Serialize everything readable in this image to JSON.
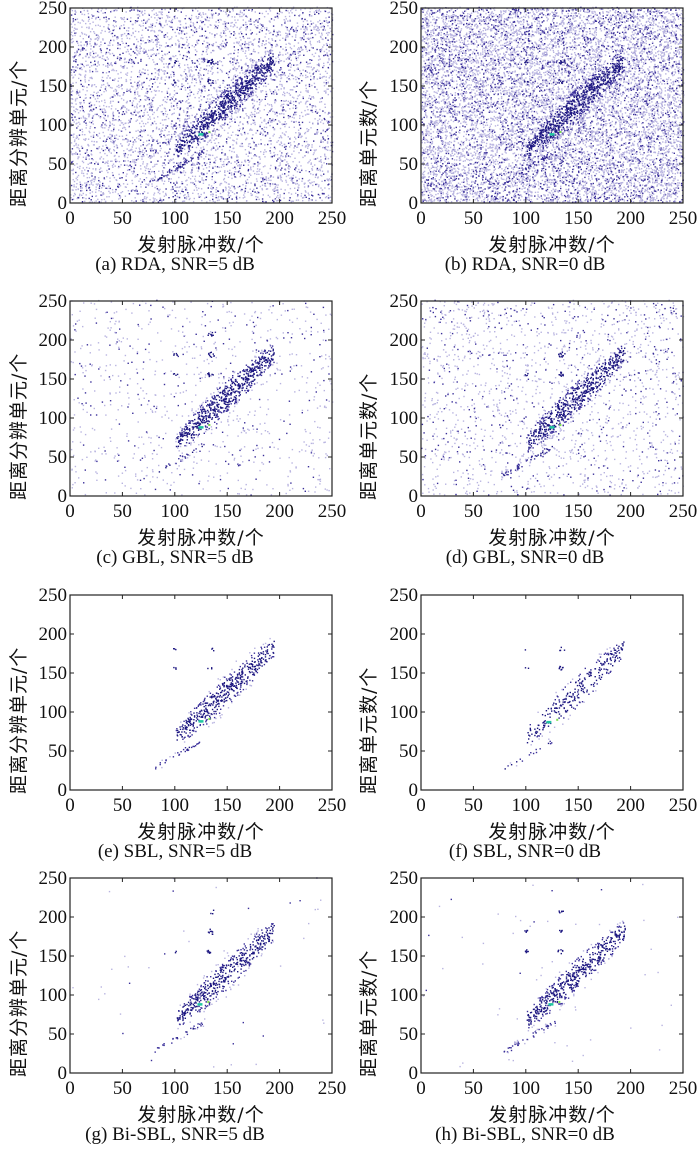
{
  "figure": {
    "colors": {
      "low": "#b8b4e0",
      "mid": "#3a2f9a",
      "high": "#1c1680",
      "peak": "#1fc7a0",
      "peak2": "#7be04a",
      "axis": "#222222"
    }
  },
  "chart_data": [
    {
      "id": "a",
      "type": "heatmap",
      "caption": "(a) RDA, SNR=5 dB",
      "method": "RDA",
      "snr_db": 5,
      "xlabel": "发射脉冲数/个",
      "ylabel": "距离分辨单元/个",
      "xlim": [
        0,
        250
      ],
      "ylim": [
        0,
        250
      ],
      "xticks": [
        0,
        50,
        100,
        150,
        200,
        250
      ],
      "yticks": [
        0,
        50,
        100,
        150,
        200,
        250
      ],
      "noise_level": 0.35,
      "target": {
        "x_range": [
          80,
          195
        ],
        "y_range": [
          20,
          200
        ],
        "peak": [
          125,
          88
        ]
      }
    },
    {
      "id": "b",
      "type": "heatmap",
      "caption": "(b) RDA, SNR=0 dB",
      "method": "RDA",
      "snr_db": 0,
      "xlabel": "发射脉冲数/个",
      "ylabel": "距离单元数/个",
      "xlim": [
        0,
        250
      ],
      "ylim": [
        0,
        250
      ],
      "xticks": [
        0,
        50,
        100,
        150,
        200,
        250
      ],
      "yticks": [
        0,
        50,
        100,
        150,
        200,
        250
      ],
      "noise_level": 0.75,
      "target": {
        "x_range": [
          80,
          195
        ],
        "y_range": [
          20,
          200
        ],
        "peak": [
          125,
          88
        ]
      }
    },
    {
      "id": "c",
      "type": "heatmap",
      "caption": "(c) GBL, SNR=5 dB",
      "method": "GBL",
      "snr_db": 5,
      "xlabel": "发射脉冲数/个",
      "ylabel": "距离分辨单元/个",
      "xlim": [
        0,
        250
      ],
      "ylim": [
        0,
        250
      ],
      "xticks": [
        0,
        50,
        100,
        150,
        200,
        250
      ],
      "yticks": [
        0,
        50,
        100,
        150,
        200,
        250
      ],
      "noise_level": 0.06,
      "target": {
        "x_range": [
          80,
          195
        ],
        "y_range": [
          20,
          230
        ],
        "peak": [
          125,
          88
        ]
      }
    },
    {
      "id": "d",
      "type": "heatmap",
      "caption": "(d) GBL, SNR=0 dB",
      "method": "GBL",
      "snr_db": 0,
      "xlabel": "发射脉冲数/个",
      "ylabel": "距离单元数/个",
      "xlim": [
        0,
        250
      ],
      "ylim": [
        0,
        250
      ],
      "xticks": [
        0,
        50,
        100,
        150,
        200,
        250
      ],
      "yticks": [
        0,
        50,
        100,
        150,
        200,
        250
      ],
      "noise_level": 0.12,
      "target": {
        "x_range": [
          80,
          195
        ],
        "y_range": [
          20,
          200
        ],
        "peak": [
          125,
          88
        ]
      }
    },
    {
      "id": "e",
      "type": "heatmap",
      "caption": "(e) SBL, SNR=5 dB",
      "method": "SBL",
      "snr_db": 5,
      "xlabel": "发射脉冲数/个",
      "ylabel": "距离分辨单元/个",
      "xlim": [
        0,
        250
      ],
      "ylim": [
        0,
        250
      ],
      "xticks": [
        0,
        50,
        100,
        150,
        200,
        250
      ],
      "yticks": [
        0,
        50,
        100,
        150,
        200,
        250
      ],
      "noise_level": 0.0,
      "target": {
        "x_range": [
          80,
          192
        ],
        "y_range": [
          25,
          205
        ],
        "peak": [
          125,
          88
        ]
      }
    },
    {
      "id": "f",
      "type": "heatmap",
      "caption": "(f) SBL, SNR=0 dB",
      "method": "SBL",
      "snr_db": 0,
      "xlabel": "发射脉冲数/个",
      "ylabel": "距离单元数/个",
      "xlim": [
        0,
        250
      ],
      "ylim": [
        0,
        250
      ],
      "xticks": [
        0,
        50,
        100,
        150,
        200,
        250
      ],
      "yticks": [
        0,
        50,
        100,
        150,
        200,
        250
      ],
      "noise_level": 0.0,
      "target": {
        "x_range": [
          110,
          187
        ],
        "y_range": [
          70,
          205
        ],
        "peak": [
          122,
          87
        ]
      }
    },
    {
      "id": "g",
      "type": "heatmap",
      "caption": "(g) Bi-SBL, SNR=5 dB",
      "method": "Bi-SBL",
      "snr_db": 5,
      "xlabel": "发射脉冲数/个",
      "ylabel": "距离分辨单元/个",
      "xlim": [
        0,
        250
      ],
      "ylim": [
        0,
        250
      ],
      "xticks": [
        0,
        50,
        100,
        150,
        200,
        250
      ],
      "yticks": [
        0,
        50,
        100,
        150,
        200,
        250
      ],
      "noise_level": 0.003,
      "target": {
        "x_range": [
          80,
          195
        ],
        "y_range": [
          22,
          232
        ],
        "peak": [
          124,
          88
        ]
      }
    },
    {
      "id": "h",
      "type": "heatmap",
      "caption": "(h) Bi-SBL, SNR=0 dB",
      "method": "Bi-SBL",
      "snr_db": 0,
      "xlabel": "发射脉冲数/个",
      "ylabel": "距离单元数/个",
      "xlim": [
        0,
        250
      ],
      "ylim": [
        0,
        250
      ],
      "xticks": [
        0,
        50,
        100,
        150,
        200,
        250
      ],
      "yticks": [
        0,
        50,
        100,
        150,
        200,
        250
      ],
      "noise_level": 0.004,
      "target": {
        "x_range": [
          80,
          195
        ],
        "y_range": [
          22,
          235
        ],
        "peak": [
          124,
          88
        ]
      }
    }
  ]
}
